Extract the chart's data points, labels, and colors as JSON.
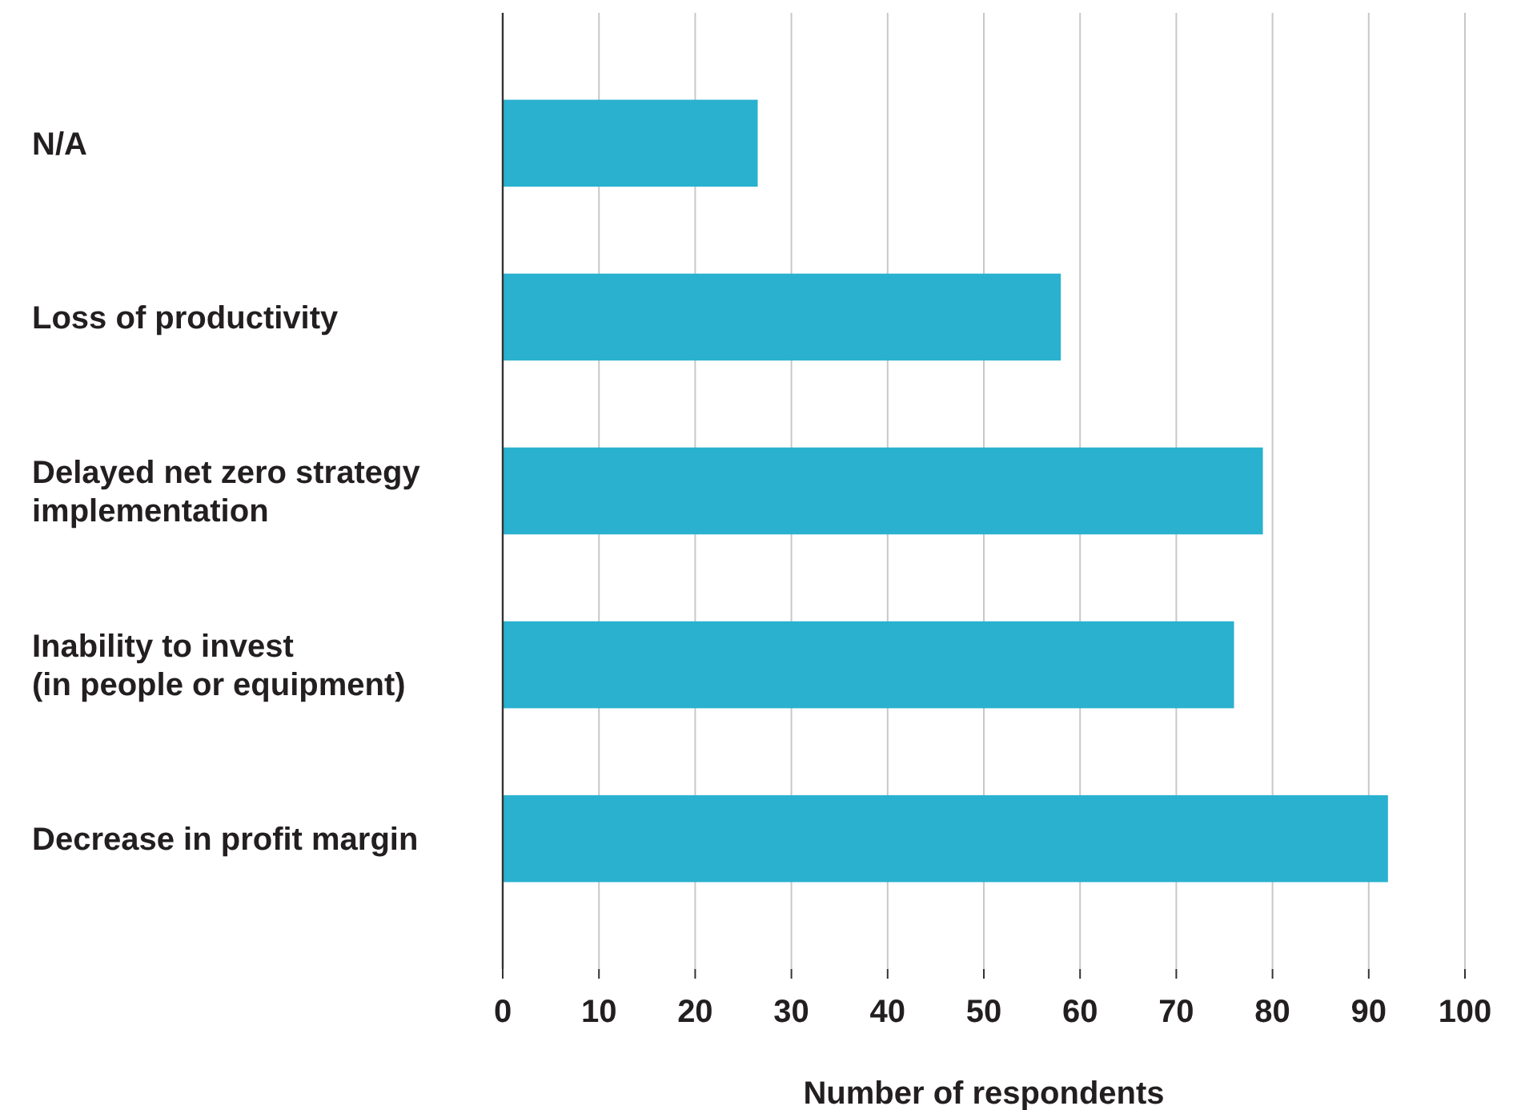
{
  "chart_data": {
    "type": "bar",
    "orientation": "horizontal",
    "xlabel": "Number of respondents",
    "categories": [
      "N/A",
      "Loss of productivity",
      "Delayed net zero strategy\nimplementation",
      "Inability to invest\n(in people or equipment)",
      "Decrease in profit margin"
    ],
    "values": [
      26.5,
      58,
      79,
      76,
      92
    ],
    "color": "#29b1cf",
    "xlim": [
      0,
      100
    ],
    "xticks": [
      0,
      10,
      20,
      30,
      40,
      50,
      60,
      70,
      80,
      90,
      100
    ],
    "grid": "x"
  }
}
